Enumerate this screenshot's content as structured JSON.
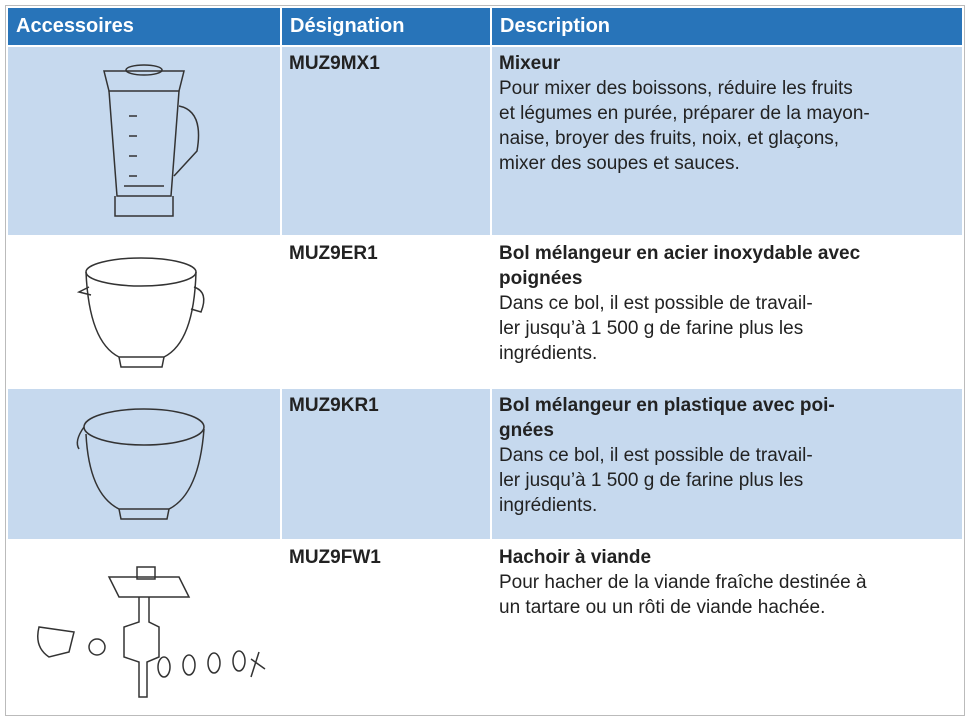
{
  "table": {
    "header": [
      "Accessoires",
      "Désignation",
      "Description"
    ],
    "rows": [
      {
        "designation": "MUZ9MX1",
        "title": [
          "Mixeur"
        ],
        "description": [
          "Pour mixer des boissons, réduire les fruits",
          "et légumes en purée, préparer de la mayon-",
          "naise, broyer des fruits, noix, et glaçons,",
          "mixer des soupes et sauces."
        ]
      },
      {
        "designation": "MUZ9ER1",
        "title": [
          "Bol mélangeur en acier inoxydable avec",
          "poignées"
        ],
        "description": [
          "Dans ce bol, il est possible de travail-",
          "ler jusqu’à 1 500 g de farine plus les",
          "ingrédients."
        ]
      },
      {
        "designation": "MUZ9KR1",
        "title": [
          "Bol mélangeur en plastique avec poi-",
          "gnées"
        ],
        "description": [
          "Dans ce bol, il est possible de travail-",
          "ler jusqu’à 1 500 g de farine plus les",
          "ingrédients."
        ]
      },
      {
        "designation": "MUZ9FW1",
        "title": [
          "Hachoir à viande"
        ],
        "description": [
          "Pour hacher de la viande fraîche destinée à",
          "un tartare ou un rôti de viande hachée."
        ]
      }
    ]
  }
}
